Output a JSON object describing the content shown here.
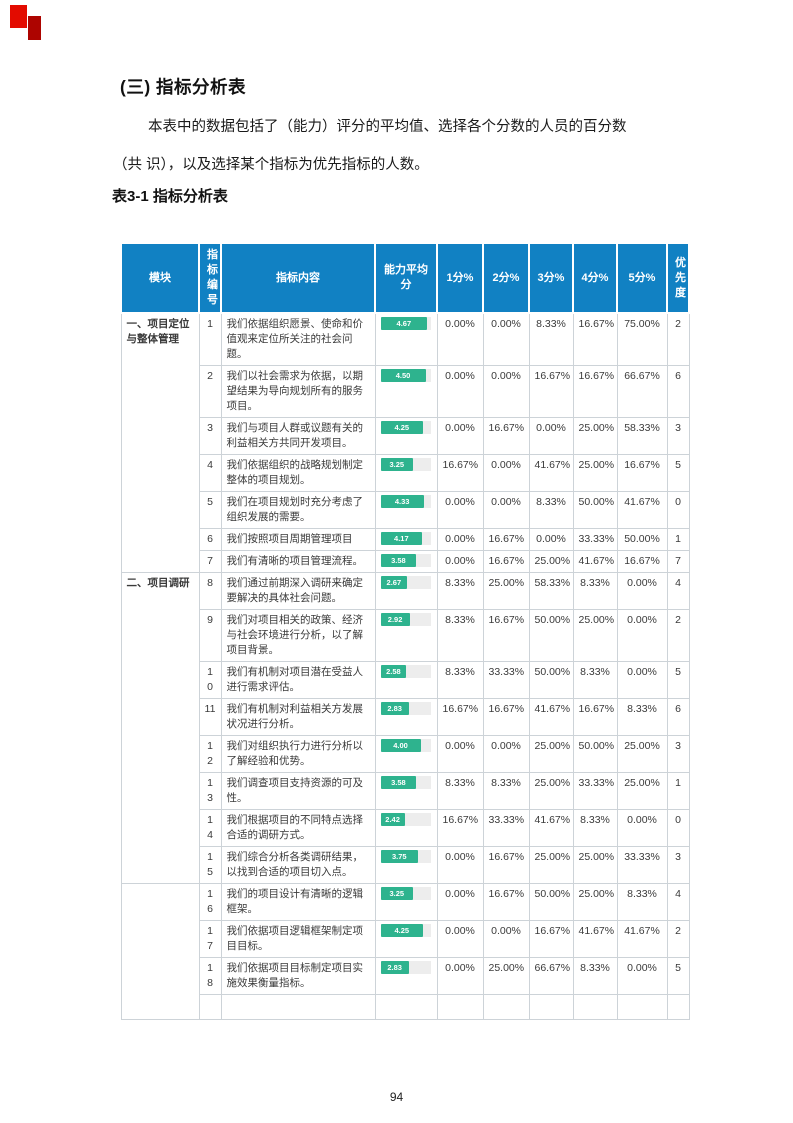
{
  "colors": {
    "header_bg": "#1181c3",
    "bar_green": "#2eb38e",
    "corner_red": "#e30b00"
  },
  "heading": {
    "section_title": "(三) 指标分析表"
  },
  "intro": {
    "lines": [
      "本表中的数据包括了（能力）评分的平均值、选择各个分数的人员的百分数",
      "（共 识），以及选择某个指标为优先指标的人数。"
    ]
  },
  "caption": "表3-1 指标分析表",
  "page_number": "94",
  "table": {
    "headers": [
      "模块",
      "指标编号",
      "指标内容",
      "能力平均分",
      "1分%",
      "2分%",
      "3分%",
      "4分%",
      "5分%",
      "优先度"
    ],
    "score_scale_max": 5,
    "modules": [
      {
        "label": "一、项目定位与整体管理",
        "rows": [
          {
            "no": "1",
            "content": "我们依据组织愿景、使命和价值观来定位所关注的社会问题。",
            "avg": "4.67",
            "scores": [
              "0.00%",
              "0.00%",
              "8.33%",
              "16.67%",
              "75.00%"
            ],
            "priority": "2"
          },
          {
            "no": "2",
            "content": "我们以社会需求为依据，以期望结果为导向规划所有的服务项目。",
            "avg": "4.50",
            "scores": [
              "0.00%",
              "0.00%",
              "16.67%",
              "16.67%",
              "66.67%"
            ],
            "priority": "6"
          },
          {
            "no": "3",
            "content": "我们与项目人群或议题有关的利益相关方共同开发项目。",
            "avg": "4.25",
            "scores": [
              "0.00%",
              "16.67%",
              "0.00%",
              "25.00%",
              "58.33%"
            ],
            "priority": "3"
          },
          {
            "no": "4",
            "content": "我们依据组织的战略规划制定整体的项目规划。",
            "avg": "3.25",
            "scores": [
              "16.67%",
              "0.00%",
              "41.67%",
              "25.00%",
              "16.67%"
            ],
            "priority": "5"
          },
          {
            "no": "5",
            "content": "我们在项目规划时充分考虑了组织发展的需要。",
            "avg": "4.33",
            "scores": [
              "0.00%",
              "0.00%",
              "8.33%",
              "50.00%",
              "41.67%"
            ],
            "priority": "0"
          },
          {
            "no": "6",
            "content": "我们按照项目周期管理项目",
            "avg": "4.17",
            "scores": [
              "0.00%",
              "16.67%",
              "0.00%",
              "33.33%",
              "50.00%"
            ],
            "priority": "1"
          },
          {
            "no": "7",
            "content": "我们有清晰的项目管理流程。",
            "avg": "3.58",
            "scores": [
              "0.00%",
              "16.67%",
              "25.00%",
              "41.67%",
              "16.67%"
            ],
            "priority": "7"
          }
        ]
      },
      {
        "label": "二、项目调研",
        "rows": [
          {
            "no": "8",
            "content": "我们通过前期深入调研来确定要解决的具体社会问题。",
            "avg": "2.67",
            "scores": [
              "8.33%",
              "25.00%",
              "58.33%",
              "8.33%",
              "0.00%"
            ],
            "priority": "4"
          },
          {
            "no": "9",
            "content": "我们对项目相关的政策、经济与社会环境进行分析，以了解项目背景。",
            "avg": "2.92",
            "scores": [
              "8.33%",
              "16.67%",
              "50.00%",
              "25.00%",
              "0.00%"
            ],
            "priority": "2"
          },
          {
            "no": "10",
            "content": "我们有机制对项目潜在受益人进行需求评估。",
            "avg": "2.58",
            "scores": [
              "8.33%",
              "33.33%",
              "50.00%",
              "8.33%",
              "0.00%"
            ],
            "priority": "5"
          },
          {
            "no": "11",
            "content": "我们有机制对利益相关方发展状况进行分析。",
            "avg": "2.83",
            "scores": [
              "16.67%",
              "16.67%",
              "41.67%",
              "16.67%",
              "8.33%"
            ],
            "priority": "6"
          },
          {
            "no": "12",
            "content": "我们对组织执行力进行分析以了解经验和优势。",
            "avg": "4.00",
            "scores": [
              "0.00%",
              "0.00%",
              "25.00%",
              "50.00%",
              "25.00%"
            ],
            "priority": "3"
          },
          {
            "no": "13",
            "content": "我们调查项目支持资源的可及性。",
            "avg": "3.58",
            "scores": [
              "8.33%",
              "8.33%",
              "25.00%",
              "33.33%",
              "25.00%"
            ],
            "priority": "1"
          },
          {
            "no": "14",
            "content": "我们根据项目的不同特点选择合适的调研方式。",
            "avg": "2.42",
            "scores": [
              "16.67%",
              "33.33%",
              "41.67%",
              "8.33%",
              "0.00%"
            ],
            "priority": "0"
          },
          {
            "no": "15",
            "content": "我们综合分析各类调研结果，以找到合适的项目切入点。",
            "avg": "3.75",
            "scores": [
              "0.00%",
              "16.67%",
              "25.00%",
              "25.00%",
              "33.33%"
            ],
            "priority": "3"
          }
        ]
      },
      {
        "label": "",
        "rows": [
          {
            "no": "16",
            "content": "我们的项目设计有清晰的逻辑框架。",
            "avg": "3.25",
            "scores": [
              "0.00%",
              "16.67%",
              "50.00%",
              "25.00%",
              "8.33%"
            ],
            "priority": "4"
          },
          {
            "no": "17",
            "content": "我们依据项目逻辑框架制定项目目标。",
            "avg": "4.25",
            "scores": [
              "0.00%",
              "0.00%",
              "16.67%",
              "41.67%",
              "41.67%"
            ],
            "priority": "2"
          },
          {
            "no": "18",
            "content": "我们依据项目目标制定项目实施效果衡量指标。",
            "avg": "2.83",
            "scores": [
              "0.00%",
              "25.00%",
              "66.67%",
              "8.33%",
              "0.00%"
            ],
            "priority": "5"
          },
          {
            "no": "",
            "content": "",
            "avg": "",
            "scores": [
              "",
              "",
              "",
              "",
              ""
            ],
            "priority": ""
          }
        ]
      }
    ]
  }
}
